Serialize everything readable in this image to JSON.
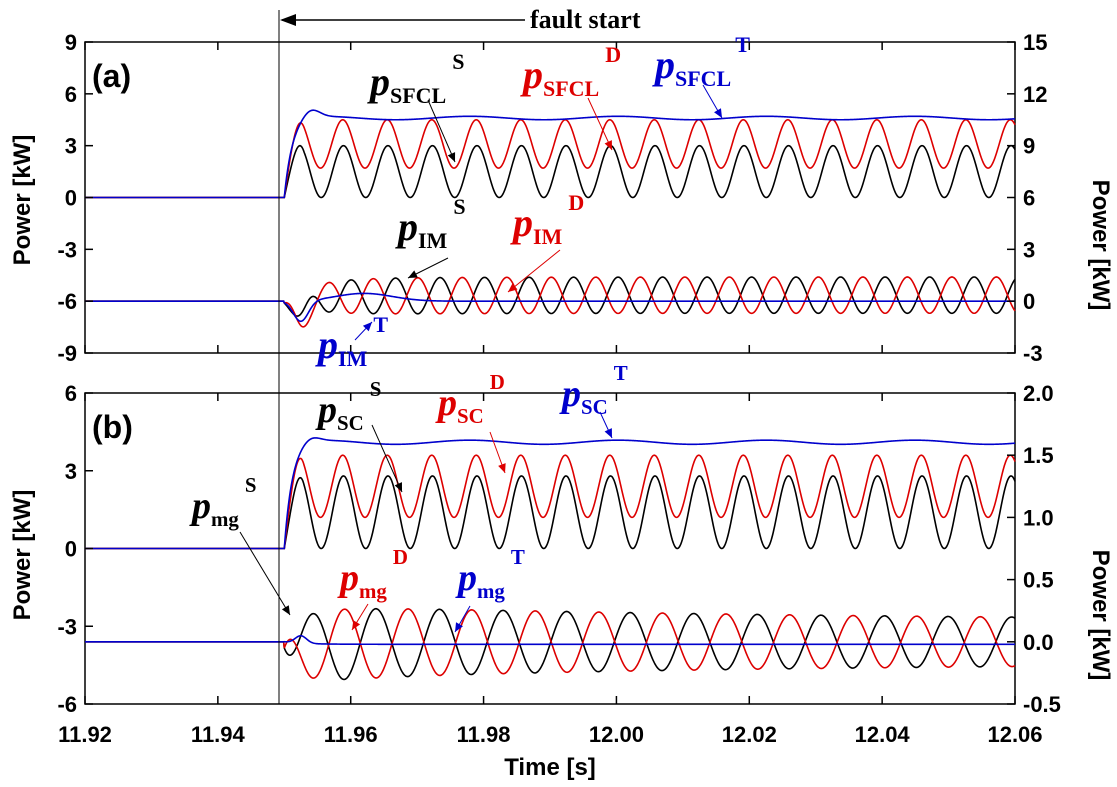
{
  "chart_data": {
    "type": "line",
    "x_axis": {
      "label": "Time [s]",
      "range": [
        11.92,
        12.06
      ],
      "ticks": [
        "11.92",
        "11.94",
        "11.96",
        "11.98",
        "12.00",
        "12.02",
        "12.04",
        "12.06"
      ]
    },
    "fault_start": {
      "x": 11.95,
      "label": "fault start"
    },
    "panels": [
      {
        "label": "(a)",
        "left_axis": {
          "label": "Power [kW]",
          "range": [
            -9,
            9
          ],
          "ticks": [
            "-9",
            "-6",
            "-3",
            "0",
            "3",
            "6",
            "9"
          ]
        },
        "right_axis": {
          "label": "Power [kW]",
          "range": [
            -3,
            15
          ],
          "ticks": [
            "-3",
            "0",
            "3",
            "6",
            "9",
            "12",
            "15"
          ]
        },
        "series": [
          {
            "base": "p",
            "sub": "SFCL",
            "sup": "S",
            "color": "#000000",
            "axis": "left",
            "pre": 0,
            "mean": 1.5,
            "amp": 1.5,
            "phase": -0.5,
            "env": "sat",
            "peak": 3.5
          },
          {
            "base": "p",
            "sub": "SFCL",
            "sup": "D",
            "color": "#dd0000",
            "axis": "left",
            "pre": 0,
            "mean": 3.1,
            "amp": 1.4,
            "phase": -0.4,
            "env": "sat",
            "peak": 4.3
          },
          {
            "base": "p",
            "sub": "SFCL",
            "sup": "T",
            "color": "#0000cc",
            "axis": "left",
            "pre": 0,
            "mean": 4.6,
            "amp": 0.1,
            "phase": 0,
            "env": "overshoot",
            "peak": 5.1
          },
          {
            "base": "p",
            "sub": "IM",
            "sup": "S",
            "color": "#000000",
            "axis": "right",
            "pre": 0,
            "mean": 0.35,
            "amp": 1.05,
            "phase": -1.57,
            "env": "im",
            "dip": -1.2
          },
          {
            "base": "p",
            "sub": "IM",
            "sup": "D",
            "color": "#dd0000",
            "axis": "right",
            "pre": 0,
            "mean": 0.35,
            "amp": 1.05,
            "phase": 1.57,
            "env": "im",
            "dip": -1.2
          },
          {
            "base": "p",
            "sub": "IM",
            "sup": "T",
            "color": "#0000cc",
            "axis": "right",
            "pre": 0,
            "mean": 0.0,
            "amp": 0.0,
            "phase": 0,
            "env": "imt",
            "dip": -1.2,
            "hump": 0.45
          }
        ]
      },
      {
        "label": "(b)",
        "left_axis": {
          "label": "Power [kW]",
          "range": [
            -6,
            6
          ],
          "ticks": [
            "-6",
            "-3",
            "0",
            "3",
            "6"
          ]
        },
        "right_axis": {
          "label": "Power [kW]",
          "range": [
            -0.5,
            2.0
          ],
          "ticks": [
            "-0.5",
            "0.0",
            "0.5",
            "1.0",
            "1.5",
            "2.0"
          ]
        },
        "series": [
          {
            "base": "p",
            "sub": "SC",
            "sup": "S",
            "color": "#000000",
            "axis": "left",
            "pre": 0,
            "mean": 1.4,
            "amp": 1.4,
            "phase": -0.5,
            "env": "sat",
            "peak": 2.9
          },
          {
            "base": "p",
            "sub": "SC",
            "sup": "D",
            "color": "#dd0000",
            "axis": "left",
            "pre": 0,
            "mean": 2.4,
            "amp": 1.2,
            "phase": -0.4,
            "env": "sat",
            "peak": 3.6
          },
          {
            "base": "p",
            "sub": "SC",
            "sup": "T",
            "color": "#0000cc",
            "axis": "left",
            "pre": 0,
            "mean": 4.1,
            "amp": 0.08,
            "phase": 0,
            "env": "overshoot",
            "peak": 4.3
          },
          {
            "base": "p",
            "sub": "mg",
            "sup": "S",
            "color": "#000000",
            "axis": "right",
            "pre": 0,
            "mean": 0.0,
            "amp": 0.3,
            "phase": -1.2,
            "env": "mg",
            "freq": 0.7
          },
          {
            "base": "p",
            "sub": "mg",
            "sup": "D",
            "color": "#dd0000",
            "axis": "right",
            "pre": 0,
            "mean": 0.0,
            "amp": 0.3,
            "phase": 1.9,
            "env": "mg",
            "freq": 0.7
          },
          {
            "base": "p",
            "sub": "mg",
            "sup": "T",
            "color": "#0000cc",
            "axis": "right",
            "pre": 0,
            "mean": -0.02,
            "amp": 0.0,
            "phase": 0,
            "env": "mgt"
          }
        ]
      }
    ]
  }
}
